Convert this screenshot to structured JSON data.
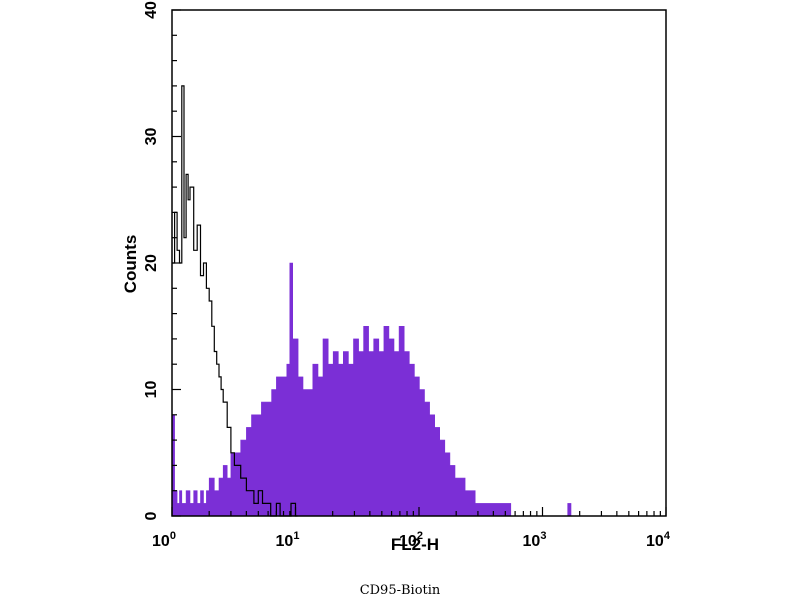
{
  "chart_data": {
    "type": "histogram",
    "xlabel": "FL2-H",
    "ylabel": "Counts",
    "x_scale": "log",
    "xlim": [
      1,
      10000
    ],
    "ylim": [
      0,
      40
    ],
    "y_ticks": [
      0,
      10,
      20,
      30,
      40
    ],
    "x_ticks": [
      {
        "base": "10",
        "exp": "0"
      },
      {
        "base": "10",
        "exp": "1"
      },
      {
        "base": "10",
        "exp": "2"
      },
      {
        "base": "10",
        "exp": "3"
      },
      {
        "base": "10",
        "exp": "4"
      }
    ],
    "grid": false,
    "series": [
      {
        "style": "filled",
        "color": "#7b2fd6",
        "points": [
          [
            1.0,
            8
          ],
          [
            1.05,
            2
          ],
          [
            1.1,
            1
          ],
          [
            1.15,
            2
          ],
          [
            1.2,
            1
          ],
          [
            1.3,
            2
          ],
          [
            1.4,
            1
          ],
          [
            1.5,
            2
          ],
          [
            1.6,
            1
          ],
          [
            1.7,
            2
          ],
          [
            1.8,
            1
          ],
          [
            1.9,
            2
          ],
          [
            2.0,
            3
          ],
          [
            2.2,
            2
          ],
          [
            2.4,
            3
          ],
          [
            2.6,
            4
          ],
          [
            2.8,
            3
          ],
          [
            3.0,
            5
          ],
          [
            3.3,
            5
          ],
          [
            3.6,
            6
          ],
          [
            4.0,
            7
          ],
          [
            4.4,
            8
          ],
          [
            4.8,
            8
          ],
          [
            5.3,
            9
          ],
          [
            5.8,
            9
          ],
          [
            6.4,
            10
          ],
          [
            7.0,
            11
          ],
          [
            7.7,
            11
          ],
          [
            8.5,
            12
          ],
          [
            9.0,
            20
          ],
          [
            9.5,
            14
          ],
          [
            10.5,
            11
          ],
          [
            11.5,
            10
          ],
          [
            12.6,
            10
          ],
          [
            13.8,
            12
          ],
          [
            15.2,
            11
          ],
          [
            16.7,
            14
          ],
          [
            18.4,
            12
          ],
          [
            20.2,
            13
          ],
          [
            22.2,
            12
          ],
          [
            24.4,
            13
          ],
          [
            26.8,
            12
          ],
          [
            29.5,
            14
          ],
          [
            32.4,
            13
          ],
          [
            35.6,
            15
          ],
          [
            39.1,
            13
          ],
          [
            43.0,
            14
          ],
          [
            47.3,
            13
          ],
          [
            52.0,
            15
          ],
          [
            57.1,
            14
          ],
          [
            62.8,
            13
          ],
          [
            69.0,
            15
          ],
          [
            75.9,
            13
          ],
          [
            83.4,
            12
          ],
          [
            91.7,
            11
          ],
          [
            100.8,
            10
          ],
          [
            110.8,
            9
          ],
          [
            121.8,
            8
          ],
          [
            133.9,
            7
          ],
          [
            147.2,
            6
          ],
          [
            161.8,
            5
          ],
          [
            177.8,
            4
          ],
          [
            195.5,
            3
          ],
          [
            214.9,
            3
          ],
          [
            236.2,
            2
          ],
          [
            259.6,
            2
          ],
          [
            285.4,
            1
          ],
          [
            313.7,
            1
          ],
          [
            344.8,
            1
          ],
          [
            379.0,
            1
          ],
          [
            416.6,
            1
          ],
          [
            457.9,
            1
          ],
          [
            503.3,
            1
          ],
          [
            553.3,
            0
          ],
          [
            1600,
            1
          ],
          [
            1700,
            0
          ]
        ]
      },
      {
        "style": "line",
        "color": "#000000",
        "points": [
          [
            1.0,
            20
          ],
          [
            1.05,
            24
          ],
          [
            1.1,
            21
          ],
          [
            1.15,
            20
          ],
          [
            1.2,
            34
          ],
          [
            1.25,
            22
          ],
          [
            1.3,
            27
          ],
          [
            1.35,
            25
          ],
          [
            1.4,
            26
          ],
          [
            1.5,
            21
          ],
          [
            1.6,
            23
          ],
          [
            1.7,
            19
          ],
          [
            1.8,
            20
          ],
          [
            1.9,
            18
          ],
          [
            2.0,
            17
          ],
          [
            2.1,
            15
          ],
          [
            2.2,
            13
          ],
          [
            2.3,
            12
          ],
          [
            2.4,
            11
          ],
          [
            2.5,
            10
          ],
          [
            2.6,
            9
          ],
          [
            2.8,
            7
          ],
          [
            3.0,
            5
          ],
          [
            3.2,
            4
          ],
          [
            3.4,
            4
          ],
          [
            3.6,
            3
          ],
          [
            3.8,
            3
          ],
          [
            4.0,
            2
          ],
          [
            4.3,
            2
          ],
          [
            4.6,
            1
          ],
          [
            5.0,
            2
          ],
          [
            5.4,
            1
          ],
          [
            5.8,
            1
          ],
          [
            6.3,
            0
          ],
          [
            7.0,
            1
          ],
          [
            7.5,
            0
          ],
          [
            8.5,
            0
          ],
          [
            9.2,
            1
          ],
          [
            10.0,
            0
          ]
        ]
      }
    ]
  },
  "caption": "CD95-Biotin"
}
